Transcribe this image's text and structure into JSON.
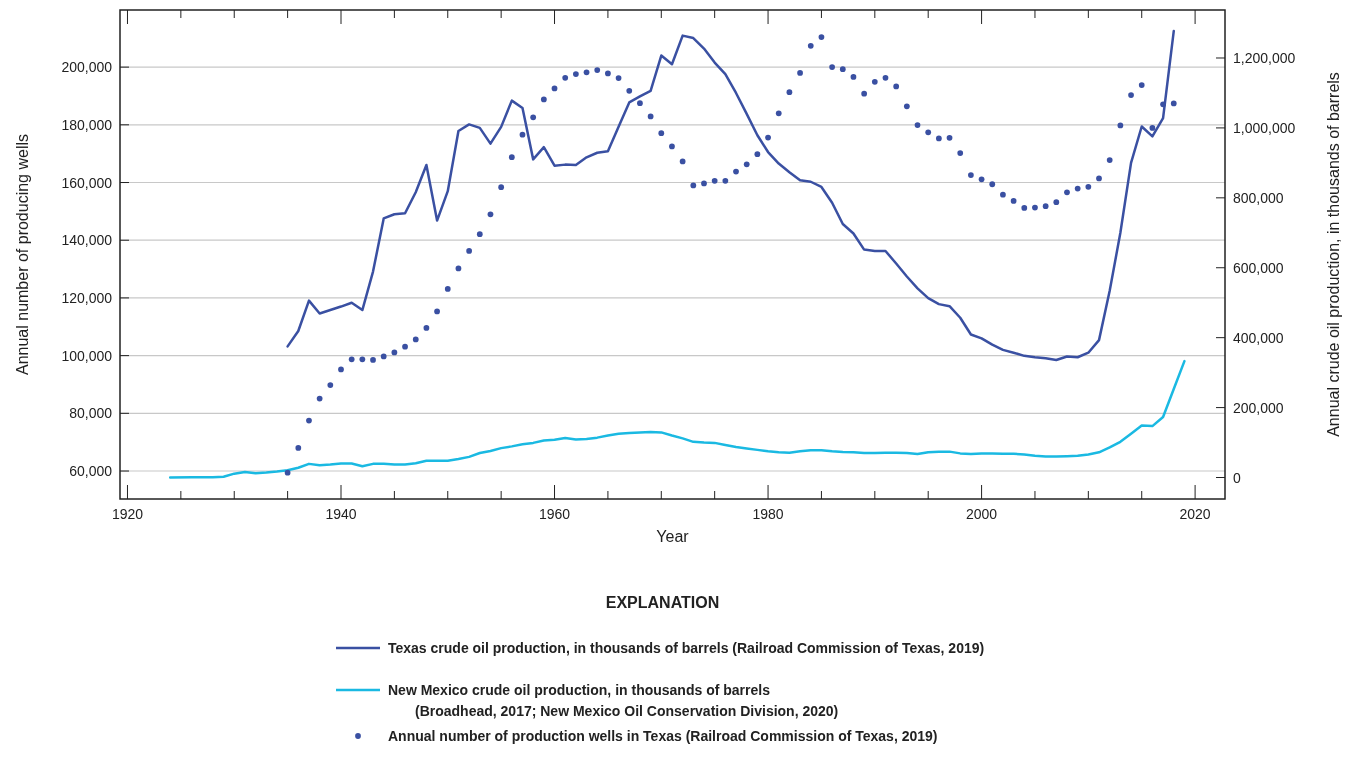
{
  "chart_data": {
    "type": "line",
    "xlabel": "Year",
    "ylabel": "Annual number of producing wells",
    "y2label": "Annual crude oil production, in thousands of barrels",
    "legend_title": "EXPLANATION",
    "legend": "bottom",
    "grid": "y",
    "xlim": [
      1919.3,
      2022.8
    ],
    "xticks": [
      1920,
      {
        "value": 1925,
        "label": null
      },
      {
        "value": 1930,
        "label": null
      },
      {
        "value": 1935,
        "label": null
      },
      1940,
      {
        "value": 1945,
        "label": null
      },
      {
        "value": 1950,
        "label": null
      },
      {
        "value": 1955,
        "label": null
      },
      1960,
      {
        "value": 1965,
        "label": null
      },
      {
        "value": 1970,
        "label": null
      },
      {
        "value": 1975,
        "label": null
      },
      1980,
      {
        "value": 1985,
        "label": null
      },
      {
        "value": 1990,
        "label": null
      },
      {
        "value": 1995,
        "label": null
      },
      2000,
      {
        "value": 2005,
        "label": null
      },
      {
        "value": 2010,
        "label": null
      },
      {
        "value": 2015,
        "label": null
      },
      2020
    ],
    "ylim": [
      50300,
      219800
    ],
    "yticks": [
      {
        "value": 60000,
        "label": "60,000"
      },
      {
        "value": 80000,
        "label": "80,000"
      },
      {
        "value": 100000,
        "label": "100,000"
      },
      {
        "value": 120000,
        "label": "120,000"
      },
      {
        "value": 140000,
        "label": "140,000"
      },
      {
        "value": 160000,
        "label": "160,000"
      },
      {
        "value": 180000,
        "label": "180,000"
      },
      {
        "value": 200000,
        "label": "200,000"
      }
    ],
    "y2lim": [
      -61500,
      1337300
    ],
    "y2ticks": [
      0,
      {
        "value": 200000,
        "label": "200,000"
      },
      {
        "value": 400000,
        "label": "400,000"
      },
      {
        "value": 600000,
        "label": "600,000"
      },
      {
        "value": 800000,
        "label": "800,000"
      },
      {
        "value": 1000000,
        "label": "1,000,000"
      },
      {
        "value": 1200000,
        "label": "1,200,000"
      }
    ],
    "series": [
      {
        "name": "Texas crude oil production, in thousands of barrels (Railroad Commission of Texas, 2019)",
        "axis": "y2",
        "color": "#3a50a2",
        "marker": "none",
        "line_style": "solid",
        "x": [
          1935,
          1936,
          1937,
          1938,
          1939,
          1940,
          1941,
          1942,
          1943,
          1944,
          1945,
          1946,
          1947,
          1948,
          1949,
          1950,
          1951,
          1952,
          1953,
          1954,
          1955,
          1956,
          1957,
          1958,
          1959,
          1960,
          1961,
          1962,
          1963,
          1964,
          1965,
          1966,
          1967,
          1968,
          1969,
          1970,
          1971,
          1972,
          1973,
          1974,
          1975,
          1976,
          1977,
          1978,
          1979,
          1980,
          1981,
          1982,
          1983,
          1984,
          1985,
          1986,
          1987,
          1988,
          1989,
          1990,
          1991,
          1992,
          1993,
          1994,
          1995,
          1996,
          1997,
          1998,
          1999,
          2000,
          2001,
          2002,
          2003,
          2004,
          2005,
          2006,
          2007,
          2008,
          2009,
          2010,
          2011,
          2012,
          2013,
          2014,
          2015,
          2016,
          2017,
          2018
        ],
        "values": [
          375000,
          419000,
          506000,
          469000,
          479000,
          489000,
          500000,
          479000,
          589000,
          741000,
          753000,
          756000,
          816000,
          894000,
          735000,
          819000,
          991000,
          1010000,
          1000000,
          955000,
          1003000,
          1078000,
          1057000,
          910000,
          945000,
          892000,
          895000,
          894000,
          916000,
          929000,
          933000,
          1003000,
          1073000,
          1090000,
          1106000,
          1207000,
          1182000,
          1264000,
          1257000,
          1227000,
          1187000,
          1154000,
          1100000,
          1040000,
          979000,
          931000,
          898000,
          873000,
          850000,
          846000,
          831000,
          786000,
          725000,
          698000,
          652000,
          648000,
          648000,
          612000,
          575000,
          541000,
          513000,
          496000,
          490000,
          457000,
          409000,
          398000,
          380000,
          365000,
          357000,
          348000,
          344000,
          341000,
          336000,
          346000,
          344000,
          357000,
          393000,
          534000,
          700000,
          900000,
          1004000,
          976000,
          1028000,
          1277000
        ]
      },
      {
        "name": "New Mexico crude oil production, in thousands of barrels (Broadhead, 2017; New Mexico Oil Conservation Division, 2020)",
        "axis": "y2",
        "color": "#1ab9e2",
        "marker": "none",
        "line_style": "solid",
        "x": [
          1924,
          1926,
          1928,
          1929,
          1930,
          1931,
          1932,
          1933,
          1934,
          1935,
          1936,
          1937,
          1938,
          1939,
          1940,
          1941,
          1942,
          1943,
          1944,
          1945,
          1946,
          1947,
          1948,
          1949,
          1950,
          1951,
          1952,
          1953,
          1954,
          1955,
          1956,
          1957,
          1958,
          1959,
          1960,
          1961,
          1962,
          1963,
          1964,
          1965,
          1966,
          1967,
          1968,
          1969,
          1970,
          1971,
          1972,
          1973,
          1974,
          1975,
          1976,
          1977,
          1978,
          1979,
          1980,
          1981,
          1982,
          1983,
          1984,
          1985,
          1986,
          1987,
          1988,
          1989,
          1990,
          1991,
          1992,
          1993,
          1994,
          1995,
          1996,
          1997,
          1998,
          1999,
          2000,
          2001,
          2002,
          2003,
          2004,
          2005,
          2006,
          2007,
          2008,
          2009,
          2010,
          2011,
          2012,
          2013,
          2014,
          2015,
          2016,
          2017,
          2018,
          2019
        ],
        "values": [
          0,
          1000,
          1000,
          2000,
          11000,
          16000,
          12000,
          14000,
          17000,
          21000,
          28000,
          39000,
          35000,
          37000,
          40000,
          40000,
          32000,
          39000,
          39000,
          37000,
          37000,
          41000,
          48000,
          48000,
          48000,
          53000,
          59000,
          70000,
          76000,
          84000,
          89000,
          95000,
          99000,
          106000,
          108000,
          113000,
          109000,
          110000,
          114000,
          120000,
          125000,
          127000,
          129000,
          130000,
          129000,
          120000,
          112000,
          102000,
          100000,
          99000,
          93000,
          87000,
          83000,
          79000,
          75000,
          72000,
          71000,
          75000,
          78000,
          78000,
          75000,
          73000,
          72000,
          70000,
          70000,
          71000,
          71000,
          70000,
          67000,
          72000,
          74000,
          74000,
          69000,
          67000,
          69000,
          69000,
          68000,
          68000,
          66000,
          62000,
          60000,
          60000,
          61000,
          62000,
          66000,
          72000,
          86000,
          102000,
          125000,
          149000,
          147000,
          173000,
          253000,
          333000
        ]
      },
      {
        "name": "Annual number of production wells in Texas (Railroad Commission of Texas, 2019)",
        "type": "scatter",
        "color": "#3a50a2",
        "marker": "circle",
        "x": [
          1935,
          1936,
          1937,
          1938,
          1939,
          1940,
          1941,
          1942,
          1943,
          1944,
          1945,
          1946,
          1947,
          1948,
          1949,
          1950,
          1951,
          1952,
          1953,
          1954,
          1955,
          1956,
          1957,
          1958,
          1959,
          1960,
          1961,
          1962,
          1963,
          1964,
          1965,
          1966,
          1967,
          1968,
          1969,
          1970,
          1971,
          1972,
          1973,
          1974,
          1975,
          1976,
          1977,
          1978,
          1979,
          1980,
          1981,
          1982,
          1983,
          1984,
          1985,
          1986,
          1987,
          1988,
          1989,
          1990,
          1991,
          1992,
          1993,
          1994,
          1995,
          1996,
          1997,
          1998,
          1999,
          2000,
          2001,
          2002,
          2003,
          2004,
          2005,
          2006,
          2007,
          2008,
          2009,
          2010,
          2011,
          2012,
          2013,
          2014,
          2015,
          2016,
          2017,
          2018
        ],
        "values": [
          59400,
          68000,
          77500,
          85100,
          89800,
          95200,
          98700,
          98700,
          98500,
          99700,
          101100,
          103100,
          105600,
          109600,
          115300,
          123100,
          130200,
          136300,
          142100,
          149000,
          158400,
          168800,
          176600,
          182600,
          188800,
          192600,
          196300,
          197600,
          198200,
          199000,
          197800,
          196200,
          191800,
          187500,
          182900,
          177100,
          172500,
          167300,
          159000,
          159700,
          160600,
          160600,
          163800,
          166300,
          169800,
          175600,
          184000,
          191300,
          198000,
          207400,
          210400,
          200000,
          199300,
          196600,
          190800,
          194900,
          196300,
          193300,
          186400,
          179900,
          177400,
          175300,
          175500,
          170200,
          162600,
          161100,
          159400,
          155800,
          153600,
          151200,
          151300,
          151800,
          153200,
          156600,
          157900,
          158500,
          161400,
          167800,
          179800,
          190300,
          193800,
          178900,
          187100,
          187400
        ]
      }
    ]
  }
}
